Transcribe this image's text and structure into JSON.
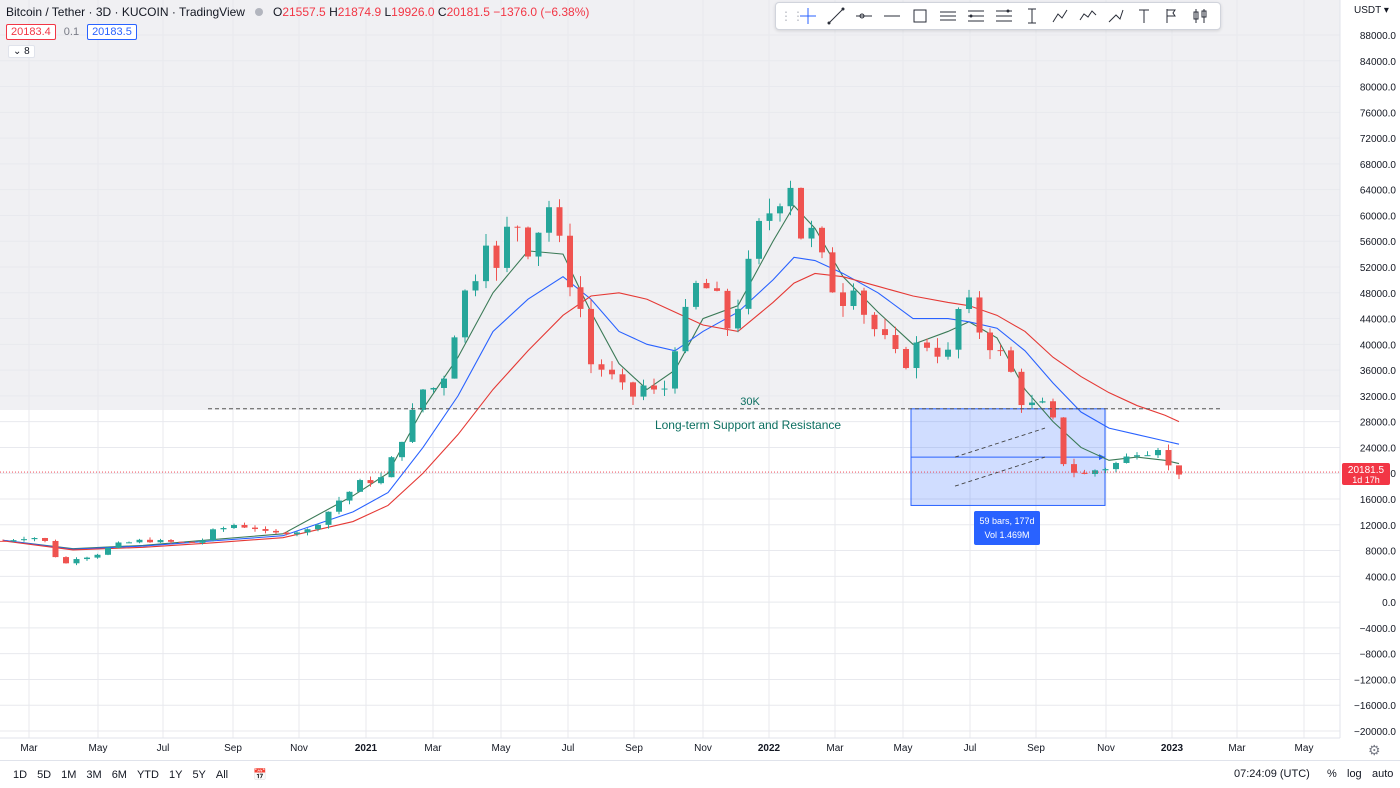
{
  "header": {
    "title": "Bitcoin / Tether · 3D · KUCOIN · TradingView",
    "o_label": "O",
    "o": "21557.5",
    "h_label": "H",
    "h": "21874.9",
    "l_label": "L",
    "l": "19926.0",
    "c_label": "C",
    "c": "20181.5",
    "change": "−1376.0 (−6.38%)",
    "sell_price": "20183.4",
    "spread": "0.1",
    "buy_price": "20183.5",
    "indicators_toggle": "8"
  },
  "currency": "USDT",
  "last_price": "20181.5",
  "countdown": "1d 17h",
  "toolbar": {
    "icons": [
      "cross-icon",
      "trend-line-icon",
      "horizontal-ray-icon",
      "horizontal-line-icon",
      "rectangle-icon",
      "parallel-channel-icon",
      "pitchfork-icon",
      "fib-icon",
      "price-range-icon",
      "path-icon",
      "polyline-icon",
      "brush-icon",
      "text-icon",
      "flag-icon",
      "long-short-icon"
    ]
  },
  "bottom": {
    "ranges": [
      "1D",
      "5D",
      "1M",
      "3M",
      "6M",
      "YTD",
      "1Y",
      "5Y",
      "All"
    ],
    "clock": "07:24:09 (UTC)",
    "percent": "%",
    "log": "log",
    "auto": "auto"
  },
  "chart_data": {
    "type": "candlestick",
    "symbol": "Bitcoin / Tether",
    "interval": "3D",
    "exchange": "KUCOIN",
    "ylim": [
      -22000,
      90000
    ],
    "y_ticks": [
      88000,
      84000,
      80000,
      76000,
      72000,
      68000,
      64000,
      60000,
      56000,
      52000,
      48000,
      44000,
      40000,
      36000,
      32000,
      28000,
      24000,
      20000,
      16000,
      12000,
      8000,
      4000,
      0,
      -4000,
      -8000,
      -12000,
      -16000,
      -20000
    ],
    "x_ticks": [
      "Mar",
      "May",
      "Jul",
      "Sep",
      "Nov",
      "2021",
      "Mar",
      "May",
      "Jul",
      "Sep",
      "Nov",
      "2022",
      "Mar",
      "May",
      "Jul",
      "Sep",
      "Nov",
      "2023",
      "Mar",
      "May"
    ],
    "x_ticks_bold": [
      "2021",
      "2022",
      "2023"
    ],
    "colors": {
      "up": "#26a69a",
      "down": "#ef5350",
      "ma_fast": "#3b7a57",
      "ma_mid": "#2962ff",
      "ma_slow": "#e53935"
    },
    "price_path": [
      [
        0,
        9500
      ],
      [
        4,
        10200
      ],
      [
        7,
        9000
      ],
      [
        8,
        5200
      ],
      [
        10,
        6800
      ],
      [
        13,
        7200
      ],
      [
        16,
        8900
      ],
      [
        20,
        9600
      ],
      [
        24,
        9300
      ],
      [
        28,
        9200
      ],
      [
        30,
        11000
      ],
      [
        33,
        12000
      ],
      [
        36,
        11500
      ],
      [
        38,
        10500
      ],
      [
        40,
        10800
      ],
      [
        42,
        11000
      ],
      [
        44,
        11200
      ],
      [
        46,
        13500
      ],
      [
        48,
        15800
      ],
      [
        51,
        18500
      ],
      [
        54,
        19200
      ],
      [
        56,
        23000
      ],
      [
        58,
        28000
      ],
      [
        60,
        33000
      ],
      [
        61,
        36000
      ],
      [
        62,
        30500
      ],
      [
        64,
        40000
      ],
      [
        66,
        48000
      ],
      [
        68,
        52000
      ],
      [
        69,
        57000
      ],
      [
        70,
        49000
      ],
      [
        72,
        57500
      ],
      [
        74,
        59000
      ],
      [
        75,
        55000
      ],
      [
        77,
        59000
      ],
      [
        78,
        61500
      ],
      [
        79,
        54000
      ],
      [
        80,
        57000
      ],
      [
        81,
        50000
      ],
      [
        82,
        49000
      ],
      [
        83,
        42000
      ],
      [
        84,
        37000
      ],
      [
        86,
        36000
      ],
      [
        88,
        33500
      ],
      [
        90,
        32000
      ],
      [
        92,
        34000
      ],
      [
        94,
        31000
      ],
      [
        96,
        40000
      ],
      [
        98,
        46000
      ],
      [
        99,
        49000
      ],
      [
        101,
        48500
      ],
      [
        102,
        47000
      ],
      [
        103,
        43000
      ],
      [
        104,
        42500
      ],
      [
        106,
        50000
      ],
      [
        108,
        58000
      ],
      [
        110,
        61500
      ],
      [
        111,
        63000
      ],
      [
        112,
        66000
      ],
      [
        113,
        64500
      ],
      [
        114,
        57000
      ],
      [
        115,
        58000
      ],
      [
        116,
        56500
      ],
      [
        118,
        49500
      ],
      [
        120,
        47000
      ],
      [
        121,
        50500
      ],
      [
        122,
        49000
      ],
      [
        123,
        45000
      ],
      [
        124,
        43000
      ],
      [
        126,
        40500
      ],
      [
        128,
        37500
      ],
      [
        130,
        37000
      ],
      [
        131,
        42500
      ],
      [
        132,
        40000
      ],
      [
        133,
        39000
      ],
      [
        135,
        38500
      ],
      [
        136,
        44000
      ],
      [
        137,
        46500
      ],
      [
        138,
        46000
      ],
      [
        139,
        43000
      ],
      [
        141,
        40000
      ],
      [
        143,
        38000
      ],
      [
        145,
        33000
      ],
      [
        146,
        29500
      ],
      [
        148,
        31500
      ],
      [
        149,
        29500
      ],
      [
        150,
        28000
      ],
      [
        151,
        22500
      ],
      [
        152,
        21000
      ],
      [
        154,
        19500
      ],
      [
        156,
        20500
      ],
      [
        158,
        21000
      ],
      [
        160,
        22000
      ],
      [
        162,
        23500
      ],
      [
        164,
        23500
      ],
      [
        165,
        24200
      ],
      [
        166,
        21500
      ],
      [
        167,
        20500
      ],
      [
        168,
        20200
      ]
    ],
    "moving_averages": {
      "fast": [
        [
          0,
          9600
        ],
        [
          10,
          8300
        ],
        [
          20,
          8800
        ],
        [
          30,
          9700
        ],
        [
          40,
          10600
        ],
        [
          50,
          16500
        ],
        [
          55,
          20000
        ],
        [
          60,
          30000
        ],
        [
          65,
          38000
        ],
        [
          70,
          48000
        ],
        [
          75,
          54500
        ],
        [
          80,
          54000
        ],
        [
          84,
          45000
        ],
        [
          88,
          37000
        ],
        [
          92,
          33000
        ],
        [
          96,
          36000
        ],
        [
          100,
          44000
        ],
        [
          105,
          46000
        ],
        [
          110,
          56000
        ],
        [
          113,
          61500
        ],
        [
          116,
          58000
        ],
        [
          120,
          50500
        ],
        [
          125,
          45000
        ],
        [
          130,
          40000
        ],
        [
          135,
          42000
        ],
        [
          138,
          43500
        ],
        [
          142,
          41000
        ],
        [
          146,
          33000
        ],
        [
          150,
          28000
        ],
        [
          154,
          24000
        ],
        [
          158,
          22000
        ],
        [
          162,
          22500
        ],
        [
          166,
          22000
        ],
        [
          168,
          21500
        ]
      ],
      "mid": [
        [
          0,
          9600
        ],
        [
          10,
          8200
        ],
        [
          20,
          8700
        ],
        [
          30,
          9500
        ],
        [
          40,
          10300
        ],
        [
          50,
          14000
        ],
        [
          55,
          17000
        ],
        [
          60,
          24000
        ],
        [
          65,
          32000
        ],
        [
          70,
          42000
        ],
        [
          75,
          47000
        ],
        [
          80,
          50500
        ],
        [
          84,
          47000
        ],
        [
          88,
          42000
        ],
        [
          92,
          40000
        ],
        [
          96,
          39000
        ],
        [
          100,
          42000
        ],
        [
          105,
          45000
        ],
        [
          110,
          50000
        ],
        [
          113,
          53500
        ],
        [
          116,
          53000
        ],
        [
          120,
          51000
        ],
        [
          125,
          48000
        ],
        [
          130,
          44000
        ],
        [
          135,
          44000
        ],
        [
          138,
          43500
        ],
        [
          142,
          42500
        ],
        [
          146,
          39000
        ],
        [
          150,
          34000
        ],
        [
          154,
          29500
        ],
        [
          158,
          27000
        ],
        [
          162,
          26000
        ],
        [
          166,
          25000
        ],
        [
          168,
          24500
        ]
      ],
      "slow": [
        [
          0,
          9500
        ],
        [
          10,
          8100
        ],
        [
          20,
          8500
        ],
        [
          30,
          9200
        ],
        [
          40,
          10000
        ],
        [
          50,
          12500
        ],
        [
          55,
          15000
        ],
        [
          60,
          20000
        ],
        [
          65,
          26000
        ],
        [
          70,
          33000
        ],
        [
          75,
          39000
        ],
        [
          80,
          44500
        ],
        [
          84,
          47500
        ],
        [
          88,
          48000
        ],
        [
          92,
          47000
        ],
        [
          96,
          45000
        ],
        [
          100,
          43000
        ],
        [
          105,
          42000
        ],
        [
          110,
          46500
        ],
        [
          113,
          49500
        ],
        [
          116,
          51000
        ],
        [
          120,
          50500
        ],
        [
          125,
          49000
        ],
        [
          130,
          47500
        ],
        [
          135,
          46500
        ],
        [
          138,
          46000
        ],
        [
          142,
          44500
        ],
        [
          146,
          42000
        ],
        [
          150,
          38000
        ],
        [
          154,
          35000
        ],
        [
          158,
          32500
        ],
        [
          162,
          30500
        ],
        [
          166,
          29000
        ],
        [
          168,
          28000
        ]
      ]
    },
    "annotations": {
      "support_level": 30000,
      "support_label": "30K",
      "support_text": "Long-term Support and Resistance",
      "range_box": {
        "x_start_bar": 146,
        "x_end_bar": 176,
        "y_top": 30000,
        "y_bottom": 15000,
        "mid_price": 22500
      },
      "range_label_line1": "59 bars, 177d",
      "range_label_line2": "Vol 1.469M",
      "current_price_line": 20181.5
    }
  }
}
